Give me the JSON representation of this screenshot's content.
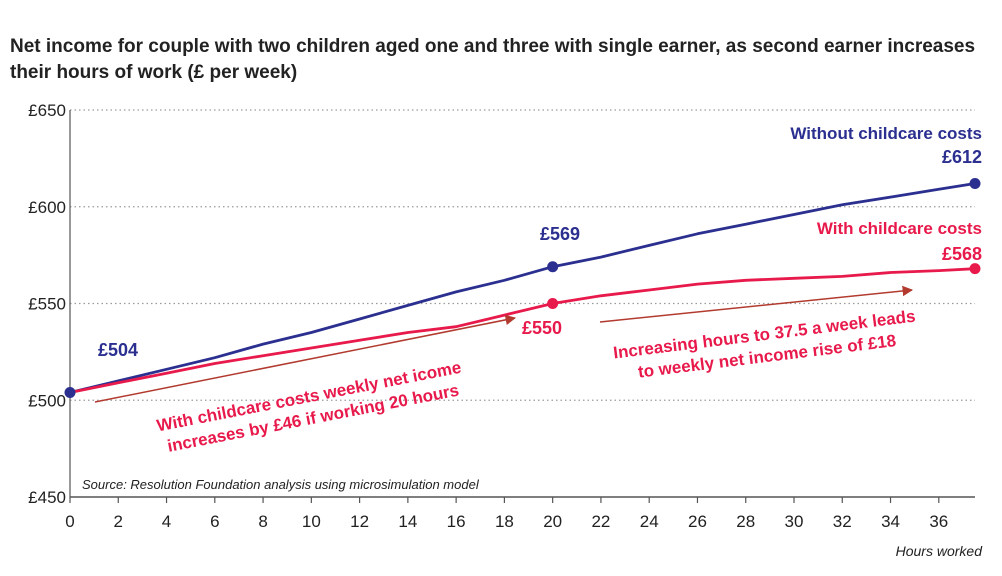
{
  "chart_data": {
    "type": "line",
    "title": "Net income for couple with two children aged one and three with single earner, as second earner increases their hours of work (£ per week)",
    "xlabel": "Hours worked",
    "ylabel": "",
    "xlim": [
      0,
      37.5
    ],
    "ylim": [
      450,
      650
    ],
    "x_ticks": [
      0,
      2,
      4,
      6,
      8,
      10,
      12,
      14,
      16,
      18,
      20,
      22,
      24,
      26,
      28,
      30,
      32,
      34,
      36
    ],
    "y_ticks": [
      {
        "value": 450,
        "label": "£450"
      },
      {
        "value": 500,
        "label": "£500"
      },
      {
        "value": 550,
        "label": "£550"
      },
      {
        "value": 600,
        "label": "£600"
      },
      {
        "value": 650,
        "label": "£650"
      }
    ],
    "grid": "horizontal-dotted",
    "series": [
      {
        "name": "Without childcare costs",
        "color": "#2b2f8f",
        "x": [
          0,
          2,
          4,
          6,
          8,
          10,
          12,
          14,
          16,
          18,
          20,
          22,
          24,
          26,
          28,
          30,
          32,
          34,
          36,
          37.5
        ],
        "values": [
          504,
          510,
          516,
          522,
          529,
          535,
          542,
          549,
          556,
          562,
          569,
          574,
          580,
          586,
          591,
          596,
          601,
          605,
          609,
          612
        ]
      },
      {
        "name": "With childcare costs",
        "color": "#e8194b",
        "x": [
          0,
          2,
          4,
          6,
          8,
          10,
          12,
          14,
          16,
          18,
          20,
          22,
          24,
          26,
          28,
          30,
          32,
          34,
          36,
          37.5
        ],
        "values": [
          504,
          509,
          514,
          519,
          523,
          527,
          531,
          535,
          538,
          544,
          550,
          554,
          557,
          560,
          562,
          563,
          564,
          566,
          567,
          568
        ]
      }
    ],
    "point_labels": [
      {
        "series": 0,
        "x": 0,
        "y": 504,
        "text": "£504",
        "marker": true
      },
      {
        "series": 0,
        "x": 20,
        "y": 569,
        "text": "£569",
        "marker": true
      },
      {
        "series": 0,
        "x": 37.5,
        "y": 612,
        "text": "£612",
        "marker": true
      },
      {
        "series": 1,
        "x": 20,
        "y": 550,
        "text": "£550",
        "marker": true
      },
      {
        "series": 1,
        "x": 37.5,
        "y": 568,
        "text": "£568",
        "marker": true
      }
    ],
    "annotations": [
      {
        "text_lines": [
          "With childcare costs weekly net icome",
          "increases by £46 if working 20 hours"
        ],
        "color": "#e8194b"
      },
      {
        "text_lines": [
          "Increasing hours to 37.5 a week leads",
          "to weekly net income rise of £18"
        ],
        "color": "#e8194b"
      }
    ],
    "source": "Source:  Resolution Foundation analysis using microsimulation model",
    "arrow_color": "#b23a2e"
  }
}
